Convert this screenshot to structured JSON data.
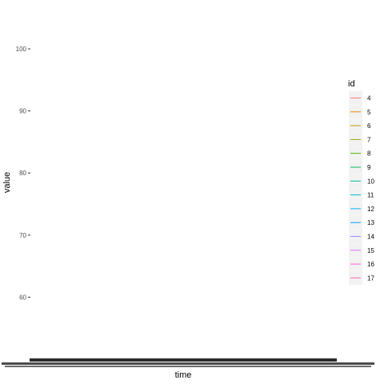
{
  "chart_data": {
    "type": "line",
    "xlabel": "time",
    "ylabel": "value",
    "y_ticks": [
      60,
      70,
      80,
      90,
      100
    ],
    "ylim": [
      54,
      104
    ],
    "grid": false,
    "legend": {
      "title": "id",
      "placement": "right",
      "entries": [
        "4",
        "5",
        "6",
        "7",
        "8",
        "9",
        "10",
        "11",
        "12",
        "13",
        "14",
        "15",
        "16",
        "17"
      ]
    },
    "series": [
      {
        "name": "4",
        "color": "#F8766D"
      },
      {
        "name": "5",
        "color": "#E38900"
      },
      {
        "name": "6",
        "color": "#C49A00"
      },
      {
        "name": "7",
        "color": "#99A800"
      },
      {
        "name": "8",
        "color": "#53B400"
      },
      {
        "name": "9",
        "color": "#00BC56"
      },
      {
        "name": "10",
        "color": "#00C094"
      },
      {
        "name": "11",
        "color": "#00BFC4"
      },
      {
        "name": "12",
        "color": "#00B6EB"
      },
      {
        "name": "13",
        "color": "#06A4FF"
      },
      {
        "name": "14",
        "color": "#A58AFF"
      },
      {
        "name": "15",
        "color": "#DF70F8"
      },
      {
        "name": "16",
        "color": "#FB61D7"
      },
      {
        "name": "17",
        "color": "#FF66A8"
      }
    ]
  }
}
